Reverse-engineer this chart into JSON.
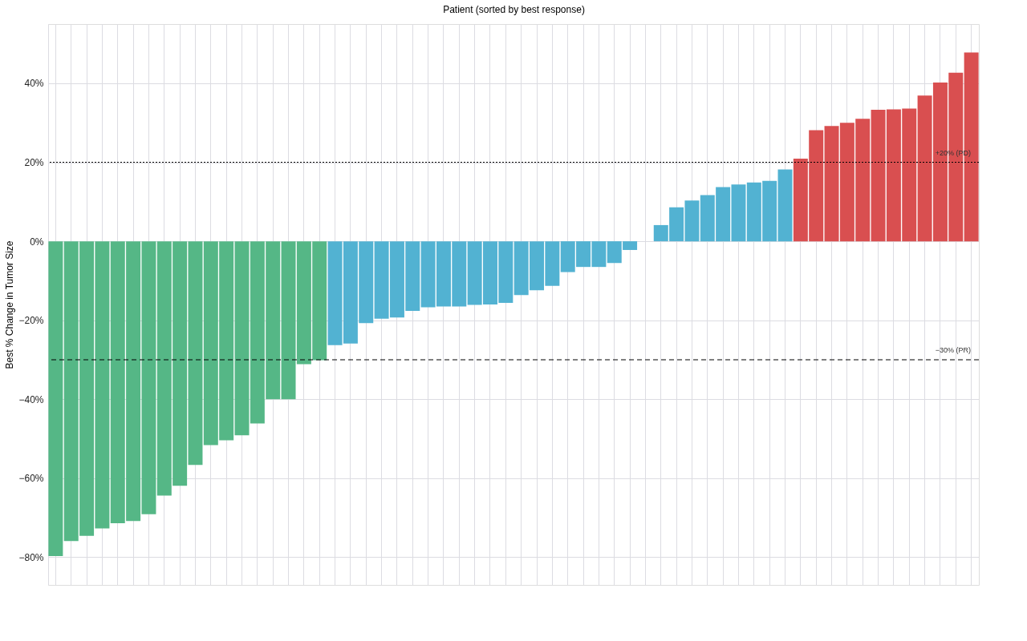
{
  "chart_data": {
    "type": "bar",
    "xlabel": "Patient (sorted by best response)",
    "ylabel": "Best % Change in Tumor Size",
    "categories": [
      null,
      null,
      null,
      null,
      null,
      null,
      null,
      null,
      null,
      null,
      null,
      null,
      null,
      null,
      null,
      null,
      null,
      null,
      null,
      null,
      null,
      null,
      null,
      null,
      null,
      null,
      null,
      null,
      null,
      null,
      null,
      null,
      null,
      null,
      null,
      null,
      null,
      null,
      null,
      null,
      null,
      null,
      null,
      null,
      null,
      null,
      null,
      null,
      null,
      null,
      null,
      null,
      null,
      null,
      null,
      null,
      null,
      null,
      null,
      null
    ],
    "values": [
      -79.7,
      -75.9,
      -74.6,
      -72.7,
      -71.4,
      -70.8,
      -69.1,
      -64.4,
      -61.9,
      -56.6,
      -51.6,
      -50.4,
      -49.1,
      -46.1,
      -40.0,
      -40.0,
      -31.1,
      -30.1,
      -26.3,
      -25.9,
      -20.7,
      -19.6,
      -19.3,
      -17.6,
      -16.7,
      -16.5,
      -16.5,
      -16.1,
      -16.0,
      -15.6,
      -13.6,
      -12.4,
      -11.3,
      -7.8,
      -6.5,
      -6.5,
      -5.5,
      -2.2,
      0,
      4.1,
      8.6,
      10.3,
      11.7,
      13.7,
      14.4,
      14.9,
      15.3,
      18.2,
      20.9,
      28.1,
      29.2,
      30.0,
      31.0,
      33.3,
      33.4,
      33.6,
      36.9,
      40.2,
      42.7,
      47.8
    ],
    "colors": [
      "#55b786",
      "#55b786",
      "#55b786",
      "#55b786",
      "#55b786",
      "#55b786",
      "#55b786",
      "#55b786",
      "#55b786",
      "#55b786",
      "#55b786",
      "#55b786",
      "#55b786",
      "#55b786",
      "#55b786",
      "#55b786",
      "#55b786",
      "#55b786",
      "#52b2d2",
      "#52b2d2",
      "#52b2d2",
      "#52b2d2",
      "#52b2d2",
      "#52b2d2",
      "#52b2d2",
      "#52b2d2",
      "#52b2d2",
      "#52b2d2",
      "#52b2d2",
      "#52b2d2",
      "#52b2d2",
      "#52b2d2",
      "#52b2d2",
      "#52b2d2",
      "#52b2d2",
      "#52b2d2",
      "#52b2d2",
      "#52b2d2",
      "#52b2d2",
      "#52b2d2",
      "#52b2d2",
      "#52b2d2",
      "#52b2d2",
      "#52b2d2",
      "#52b2d2",
      "#52b2d2",
      "#52b2d2",
      "#52b2d2",
      "#d94f50",
      "#d94f50",
      "#d94f50",
      "#d94f50",
      "#d94f50",
      "#d94f50",
      "#d94f50",
      "#d94f50",
      "#d94f50",
      "#d94f50",
      "#d94f50",
      "#d94f50"
    ],
    "ylim": [
      -87,
      55
    ],
    "yticks": [
      {
        "value": -80,
        "label": "−80%"
      },
      {
        "value": -60,
        "label": "−60%"
      },
      {
        "value": -40,
        "label": "−40%"
      },
      {
        "value": -20,
        "label": "−20%"
      },
      {
        "value": 0,
        "label": "0%"
      },
      {
        "value": 20,
        "label": "20%"
      },
      {
        "value": 40,
        "label": "40%"
      }
    ],
    "ref_lines": [
      {
        "axis": "y",
        "value": 20,
        "label": "+20% (PD)",
        "color": "#000000",
        "line_style": "dotted"
      },
      {
        "axis": "y",
        "value": -30,
        "label": "−30% (PR)",
        "color": "#000000",
        "line_style": "dashed"
      }
    ],
    "grid": true,
    "legend": false,
    "tick_labels": "y"
  }
}
